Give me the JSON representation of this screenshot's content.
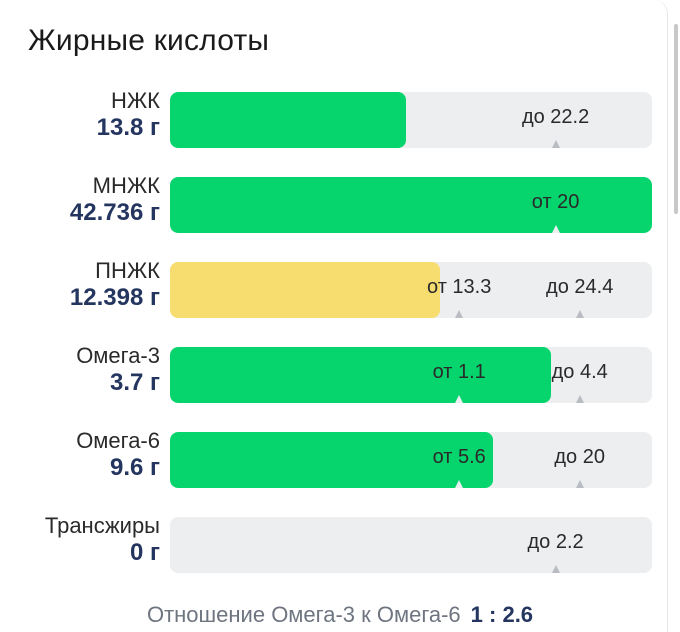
{
  "title": "Жирные кислоты",
  "rows": [
    {
      "name": "НЖК",
      "value": "13.8 г",
      "fill_fraction": 0.49,
      "fill_color": "green",
      "markers": [
        {
          "text": "до 22.2",
          "fraction": 0.8
        }
      ]
    },
    {
      "name": "МНЖК",
      "value": "42.736 г",
      "fill_fraction": 1.0,
      "fill_color": "green",
      "markers": [
        {
          "text": "от 20",
          "fraction": 0.8
        }
      ]
    },
    {
      "name": "ПНЖК",
      "value": "12.398 г",
      "fill_fraction": 0.56,
      "fill_color": "yellow",
      "markers": [
        {
          "text": "от 13.3",
          "fraction": 0.6
        },
        {
          "text": "до 24.4",
          "fraction": 0.85
        }
      ]
    },
    {
      "name": "Омега-3",
      "value": "3.7 г",
      "fill_fraction": 0.79,
      "fill_color": "green",
      "markers": [
        {
          "text": "от 1.1",
          "fraction": 0.6
        },
        {
          "text": "до 4.4",
          "fraction": 0.85
        }
      ]
    },
    {
      "name": "Омега-6",
      "value": "9.6 г",
      "fill_fraction": 0.67,
      "fill_color": "green",
      "markers": [
        {
          "text": "от 5.6",
          "fraction": 0.6
        },
        {
          "text": "до 20",
          "fraction": 0.85
        }
      ]
    },
    {
      "name": "Трансжиры",
      "value": "0 г",
      "fill_fraction": 0.0,
      "fill_color": "green",
      "markers": [
        {
          "text": "до 2.2",
          "fraction": 0.8
        }
      ]
    }
  ],
  "ratio": {
    "label": "Отношение Омега-3 к Омега-6",
    "value": "1 : 2.6"
  },
  "colors": {
    "green": "#06d46c",
    "yellow": "#f7dc6f",
    "track": "#eceef0",
    "value_text": "#24365f"
  }
}
